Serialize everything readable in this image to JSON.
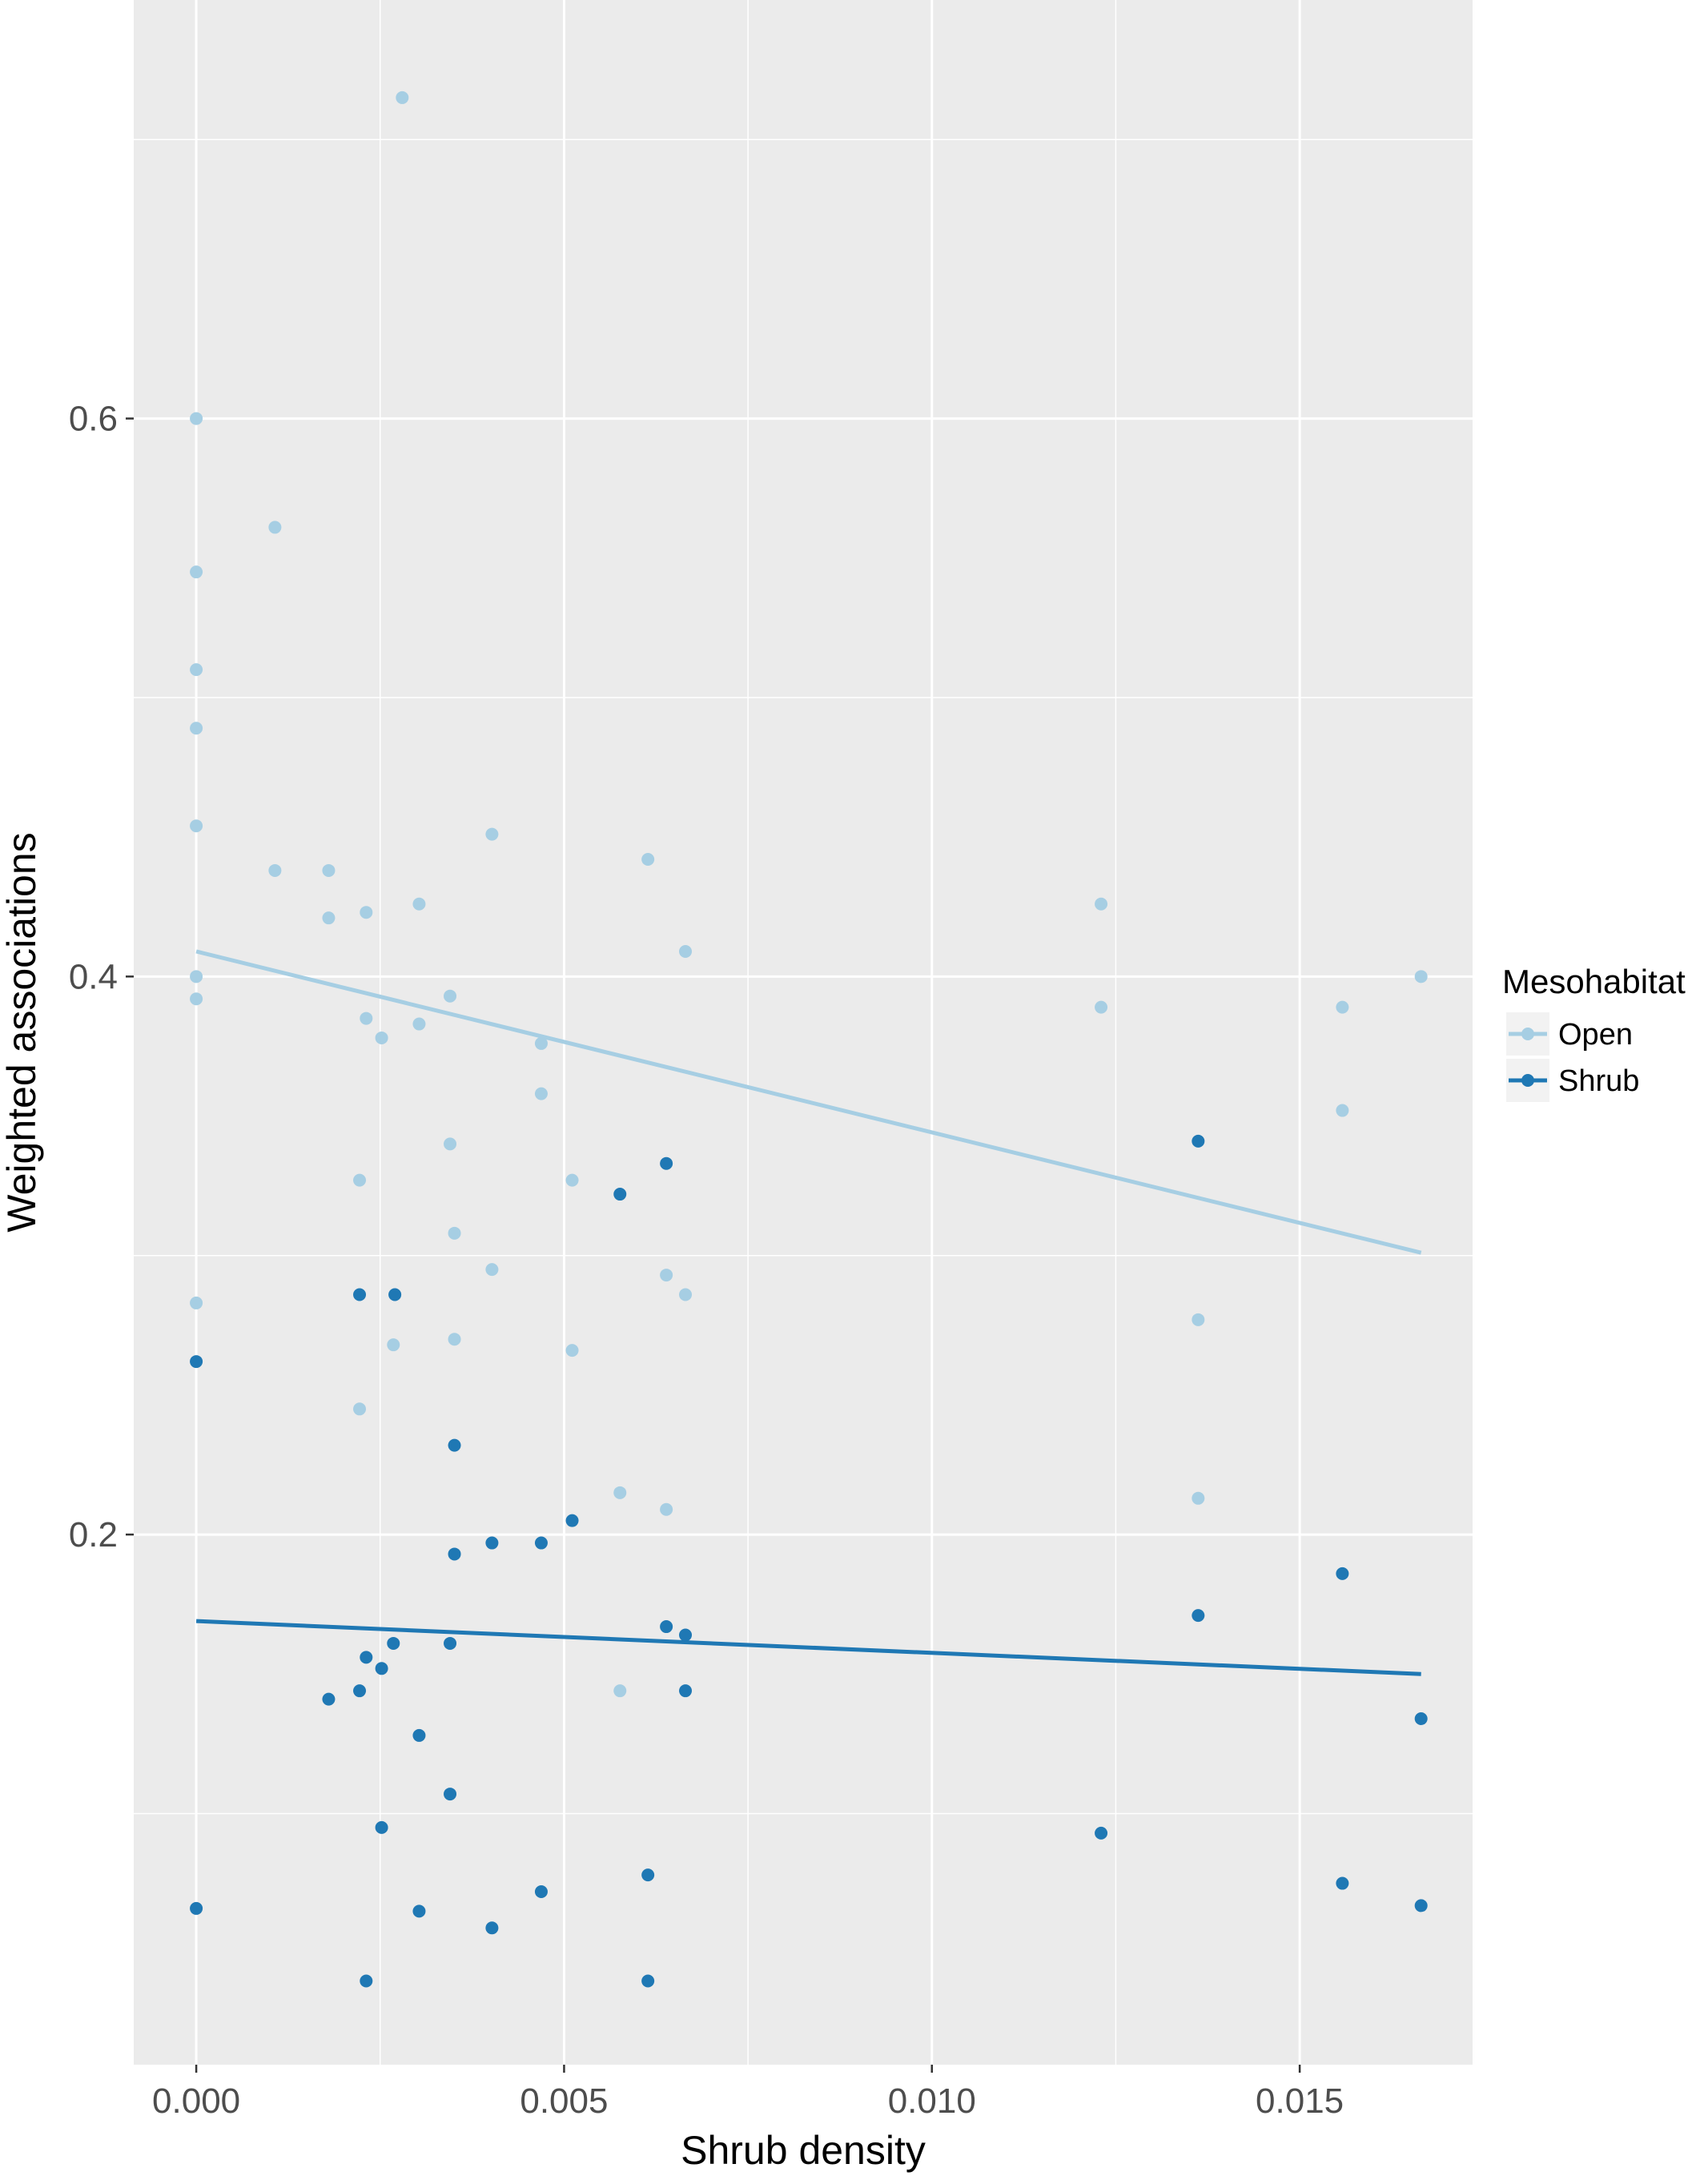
{
  "chart_data": {
    "type": "scatter",
    "xlabel": "Shrub density",
    "ylabel": "Weighted associations",
    "xlim": [
      -0.00085,
      0.01735
    ],
    "ylim": [
      0.01,
      0.75
    ],
    "x_ticks": [
      0.0,
      0.005,
      0.01,
      0.015
    ],
    "x_tick_labels": [
      "0.000",
      "0.005",
      "0.010",
      "0.015"
    ],
    "y_ticks": [
      0.2,
      0.4,
      0.6
    ],
    "y_tick_labels": [
      "0.2",
      "0.4",
      "0.6"
    ],
    "grid": true,
    "panel_background": "#ebebeb",
    "legend": {
      "title": "Mesohabitat",
      "placement": "right",
      "entries": [
        "Open",
        "Shrub"
      ]
    },
    "series": [
      {
        "name": "Open",
        "color": "#a6cee3",
        "fit_line": {
          "x": [
            0.0,
            0.01665
          ],
          "y": [
            0.409,
            0.301
          ]
        },
        "points": [
          [
            0.0,
            0.6
          ],
          [
            0.0,
            0.545
          ],
          [
            0.0,
            0.51
          ],
          [
            0.0,
            0.489
          ],
          [
            0.0,
            0.454
          ],
          [
            0.0,
            0.4
          ],
          [
            0.0,
            0.392
          ],
          [
            0.0,
            0.283
          ],
          [
            0.00107,
            0.561
          ],
          [
            0.00107,
            0.438
          ],
          [
            0.0018,
            0.438
          ],
          [
            0.0018,
            0.421
          ],
          [
            0.00231,
            0.423
          ],
          [
            0.00231,
            0.385
          ],
          [
            0.00252,
            0.378
          ],
          [
            0.00222,
            0.327
          ],
          [
            0.00222,
            0.245
          ],
          [
            0.0028,
            0.715
          ],
          [
            0.00303,
            0.426
          ],
          [
            0.00303,
            0.383
          ],
          [
            0.0027,
            0.286
          ],
          [
            0.00268,
            0.268
          ],
          [
            0.00345,
            0.393
          ],
          [
            0.00345,
            0.34
          ],
          [
            0.00351,
            0.308
          ],
          [
            0.00351,
            0.27
          ],
          [
            0.00402,
            0.451
          ],
          [
            0.00402,
            0.295
          ],
          [
            0.00469,
            0.376
          ],
          [
            0.00469,
            0.358
          ],
          [
            0.00511,
            0.327
          ],
          [
            0.00511,
            0.266
          ],
          [
            0.00576,
            0.215
          ],
          [
            0.00576,
            0.144
          ],
          [
            0.00614,
            0.442
          ],
          [
            0.00639,
            0.293
          ],
          [
            0.00639,
            0.209
          ],
          [
            0.00665,
            0.409
          ],
          [
            0.00665,
            0.286
          ],
          [
            0.0123,
            0.426
          ],
          [
            0.0123,
            0.389
          ],
          [
            0.01362,
            0.277
          ],
          [
            0.01362,
            0.213
          ],
          [
            0.01558,
            0.389
          ],
          [
            0.01558,
            0.352
          ],
          [
            0.01665,
            0.4
          ]
        ]
      },
      {
        "name": "Shrub",
        "color": "#1f78b4",
        "fit_line": {
          "x": [
            0.0,
            0.01665
          ],
          "y": [
            0.169,
            0.15
          ]
        },
        "points": [
          [
            0.0,
            0.262
          ],
          [
            0.0,
            0.066
          ],
          [
            0.0018,
            0.141
          ],
          [
            0.00222,
            0.286
          ],
          [
            0.00222,
            0.144
          ],
          [
            0.00231,
            0.156
          ],
          [
            0.00231,
            0.04
          ],
          [
            0.00252,
            0.152
          ],
          [
            0.00252,
            0.095
          ],
          [
            0.00268,
            0.161
          ],
          [
            0.0027,
            0.286
          ],
          [
            0.00303,
            0.128
          ],
          [
            0.00303,
            0.065
          ],
          [
            0.00345,
            0.161
          ],
          [
            0.00345,
            0.107
          ],
          [
            0.00351,
            0.232
          ],
          [
            0.00351,
            0.193
          ],
          [
            0.00402,
            0.197
          ],
          [
            0.00402,
            0.059
          ],
          [
            0.00469,
            0.197
          ],
          [
            0.00469,
            0.072
          ],
          [
            0.00511,
            0.205
          ],
          [
            0.00576,
            0.322
          ],
          [
            0.00614,
            0.078
          ],
          [
            0.00614,
            0.04
          ],
          [
            0.00639,
            0.333
          ],
          [
            0.00639,
            0.167
          ],
          [
            0.00665,
            0.164
          ],
          [
            0.00665,
            0.144
          ],
          [
            0.0123,
            0.093
          ],
          [
            0.01362,
            0.341
          ],
          [
            0.01362,
            0.171
          ],
          [
            0.01558,
            0.186
          ],
          [
            0.01558,
            0.075
          ],
          [
            0.01665,
            0.134
          ],
          [
            0.01665,
            0.067
          ]
        ]
      }
    ]
  }
}
